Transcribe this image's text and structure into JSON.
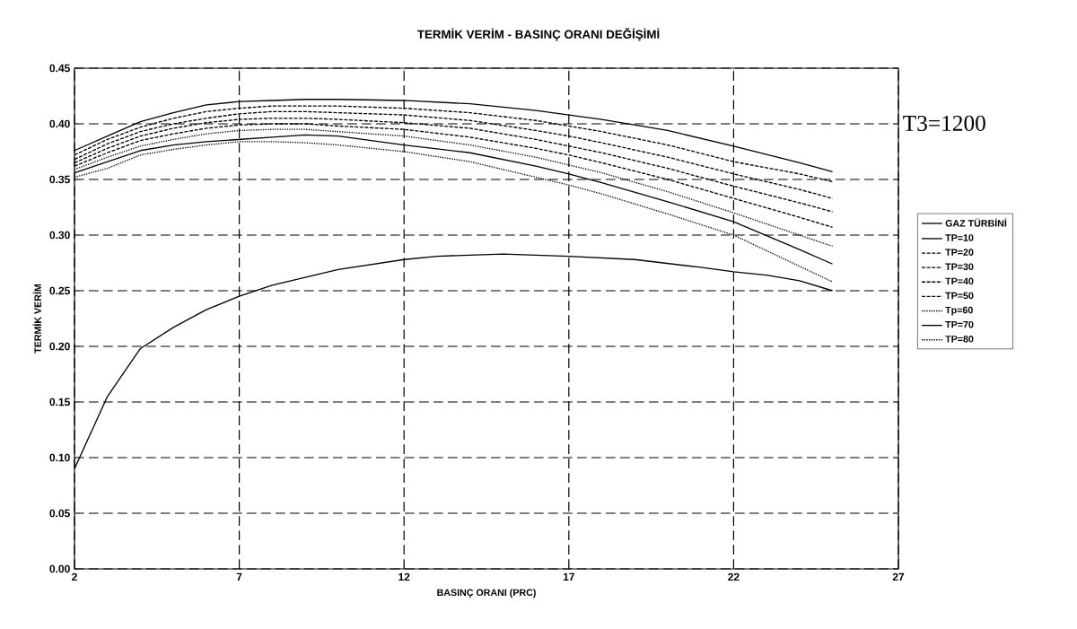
{
  "chart_data": {
    "type": "line",
    "title": "TERMİK VERİM - BASINÇ ORANI DEĞİŞİMİ",
    "xlabel": "BASINÇ ORANI (PRC)",
    "ylabel": "TERMİK VERİM",
    "x": [
      2,
      3,
      4,
      5,
      6,
      7,
      8,
      9,
      10,
      12,
      14,
      16,
      17,
      18,
      20,
      22,
      24,
      25
    ],
    "series": [
      {
        "name": "GAZ TÜRBİNİ",
        "color": "#000000",
        "line_style": "solid",
        "x": [
          2,
          3,
          4,
          5,
          6,
          7,
          8,
          10,
          12,
          13,
          15,
          17,
          19,
          21,
          22,
          23,
          24,
          25
        ],
        "values": [
          0.09,
          0.155,
          0.198,
          0.217,
          0.233,
          0.245,
          0.255,
          0.269,
          0.278,
          0.281,
          0.283,
          0.281,
          0.278,
          0.271,
          0.267,
          0.264,
          0.259,
          0.25
        ]
      },
      {
        "name": "TP=10",
        "color": "#000000",
        "line_style": "solid",
        "values": [
          0.376,
          0.389,
          0.402,
          0.41,
          0.417,
          0.42,
          0.421,
          0.422,
          0.422,
          0.421,
          0.418,
          0.412,
          0.408,
          0.404,
          0.394,
          0.38,
          0.365,
          0.357
        ]
      },
      {
        "name": "TP=20",
        "color": "#000000",
        "line_style": "dashed",
        "values": [
          0.372,
          0.386,
          0.397,
          0.405,
          0.411,
          0.414,
          0.416,
          0.416,
          0.416,
          0.414,
          0.41,
          0.403,
          0.398,
          0.393,
          0.381,
          0.366,
          0.355,
          0.348
        ]
      },
      {
        "name": "TP=30",
        "color": "#000000",
        "line_style": "dashed",
        "values": [
          0.368,
          0.382,
          0.393,
          0.4,
          0.405,
          0.409,
          0.411,
          0.411,
          0.41,
          0.408,
          0.403,
          0.394,
          0.389,
          0.383,
          0.37,
          0.355,
          0.341,
          0.333
        ]
      },
      {
        "name": "TP=40",
        "color": "#000000",
        "line_style": "dashed",
        "values": [
          0.365,
          0.378,
          0.389,
          0.396,
          0.401,
          0.404,
          0.405,
          0.405,
          0.404,
          0.401,
          0.396,
          0.386,
          0.38,
          0.374,
          0.36,
          0.344,
          0.329,
          0.321
        ]
      },
      {
        "name": "TP=50",
        "color": "#000000",
        "line_style": "dashed",
        "values": [
          0.362,
          0.374,
          0.385,
          0.391,
          0.396,
          0.399,
          0.4,
          0.4,
          0.398,
          0.395,
          0.388,
          0.378,
          0.372,
          0.365,
          0.35,
          0.333,
          0.316,
          0.307
        ]
      },
      {
        "name": "Tp=60",
        "color": "#000000",
        "line_style": "dotted",
        "values": [
          0.359,
          0.37,
          0.38,
          0.386,
          0.391,
          0.394,
          0.395,
          0.395,
          0.393,
          0.389,
          0.381,
          0.37,
          0.363,
          0.356,
          0.339,
          0.32,
          0.3,
          0.29
        ]
      },
      {
        "name": "TP=70",
        "color": "#000000",
        "line_style": "solid",
        "values": [
          0.356,
          0.366,
          0.376,
          0.381,
          0.384,
          0.386,
          0.388,
          0.39,
          0.389,
          0.381,
          0.374,
          0.362,
          0.355,
          0.347,
          0.33,
          0.312,
          0.287,
          0.274
        ]
      },
      {
        "name": "TP=80",
        "color": "#000000",
        "line_style": "dotted",
        "values": [
          0.352,
          0.36,
          0.372,
          0.377,
          0.381,
          0.384,
          0.384,
          0.383,
          0.381,
          0.375,
          0.366,
          0.352,
          0.345,
          0.337,
          0.319,
          0.3,
          0.272,
          0.258
        ]
      }
    ],
    "xlim": [
      2,
      27
    ],
    "ylim": [
      0,
      0.45
    ],
    "xticks": [
      2,
      7,
      12,
      17,
      22,
      27
    ],
    "yticks": [
      {
        "value": 0,
        "label": "0.00"
      },
      {
        "value": 0.05,
        "label": "0.05"
      },
      {
        "value": 0.1,
        "label": "0.10"
      },
      {
        "value": 0.15,
        "label": "0.15"
      },
      {
        "value": 0.2,
        "label": "0.20"
      },
      {
        "value": 0.25,
        "label": "0.25"
      },
      {
        "value": 0.3,
        "label": "0.30"
      },
      {
        "value": 0.35,
        "label": "0.35"
      },
      {
        "value": 0.4,
        "label": "0.40"
      },
      {
        "value": 0.45,
        "label": "0.45"
      }
    ],
    "annotations": [
      "T3=1200"
    ],
    "grid": true,
    "legend": "right",
    "marker": "none"
  }
}
